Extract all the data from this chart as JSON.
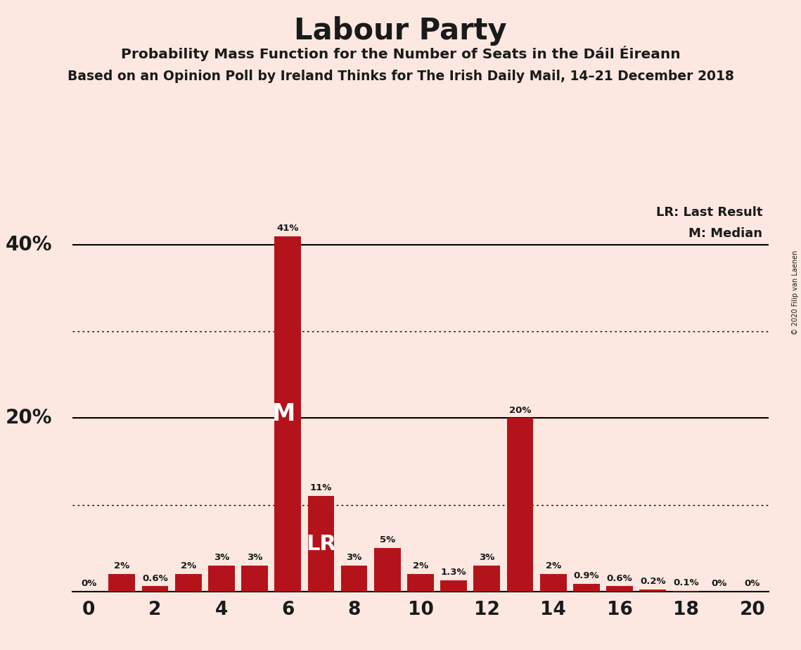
{
  "title": "Labour Party",
  "subtitle1": "Probability Mass Function for the Number of Seats in the Dáil Éireann",
  "subtitle2": "Based on an Opinion Poll by Ireland Thinks for The Irish Daily Mail, 14–21 December 2018",
  "copyright": "© 2020 Filip van Laenen",
  "background_color": "#fce8e0",
  "bar_color": "#b5131b",
  "seats": [
    0,
    1,
    2,
    3,
    4,
    5,
    6,
    7,
    8,
    9,
    10,
    11,
    12,
    13,
    14,
    15,
    16,
    17,
    18,
    19,
    20
  ],
  "probabilities": [
    0.0,
    2.0,
    0.6,
    2.0,
    3.0,
    3.0,
    41.0,
    11.0,
    3.0,
    5.0,
    2.0,
    1.3,
    3.0,
    20.0,
    2.0,
    0.9,
    0.6,
    0.2,
    0.1,
    0.0,
    0.0
  ],
  "labels": [
    "0%",
    "2%",
    "0.6%",
    "2%",
    "3%",
    "3%",
    "41%",
    "11%",
    "3%",
    "5%",
    "2%",
    "1.3%",
    "3%",
    "20%",
    "2%",
    "0.9%",
    "0.6%",
    "0.2%",
    "0.1%",
    "0%",
    "0%"
  ],
  "median_seat": 6,
  "last_result_seat": 7,
  "legend_lr": "LR: Last Result",
  "legend_m": "M: Median",
  "solid_lines": [
    20.0,
    40.0
  ],
  "dotted_lines": [
    10.0,
    30.0
  ],
  "ylim": [
    0,
    45
  ],
  "xlim": [
    -0.5,
    20.5
  ],
  "ylabel_positions": [
    [
      20,
      "20%"
    ],
    [
      40,
      "40%"
    ]
  ]
}
